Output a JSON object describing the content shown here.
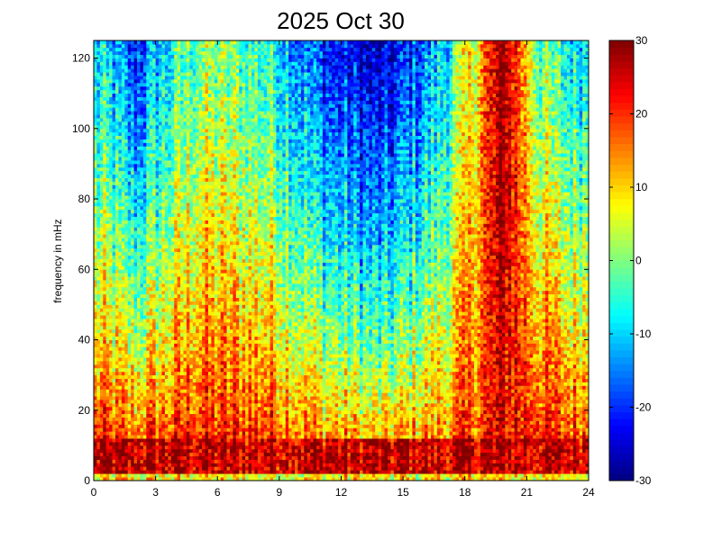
{
  "chart_data": {
    "type": "heatmap",
    "title": "2025 Oct 30",
    "xlabel": "",
    "ylabel": "frequency in mHz",
    "x_range": [
      0,
      24
    ],
    "y_range": [
      0,
      125
    ],
    "x_ticks": [
      0,
      3,
      6,
      9,
      12,
      15,
      18,
      21,
      24
    ],
    "y_ticks": [
      0,
      20,
      40,
      60,
      80,
      100,
      120
    ],
    "colorbar": {
      "range": [
        -30,
        30
      ],
      "ticks": [
        30,
        20,
        10,
        0,
        -10,
        -20,
        -30
      ],
      "colormap": "jet"
    },
    "grid": false,
    "description_points": [
      {
        "hour": 0.5,
        "level_low": 30,
        "level_high": -10
      },
      {
        "hour": 2,
        "level_low": 30,
        "level_high": -20
      },
      {
        "hour": 5,
        "level_low": 30,
        "level_high": 0
      },
      {
        "hour": 8.5,
        "level_low": 30,
        "level_high": -5
      },
      {
        "hour": 11,
        "level_low": 28,
        "level_high": -20
      },
      {
        "hour": 14,
        "level_low": 25,
        "level_high": -28
      },
      {
        "hour": 17,
        "level_low": 25,
        "level_high": -10
      },
      {
        "hour": 20,
        "level_low": 20,
        "level_high": 30
      },
      {
        "hour": 21.5,
        "level_low": 30,
        "level_high": 0
      },
      {
        "hour": 23,
        "level_low": 30,
        "level_high": -8
      }
    ]
  }
}
